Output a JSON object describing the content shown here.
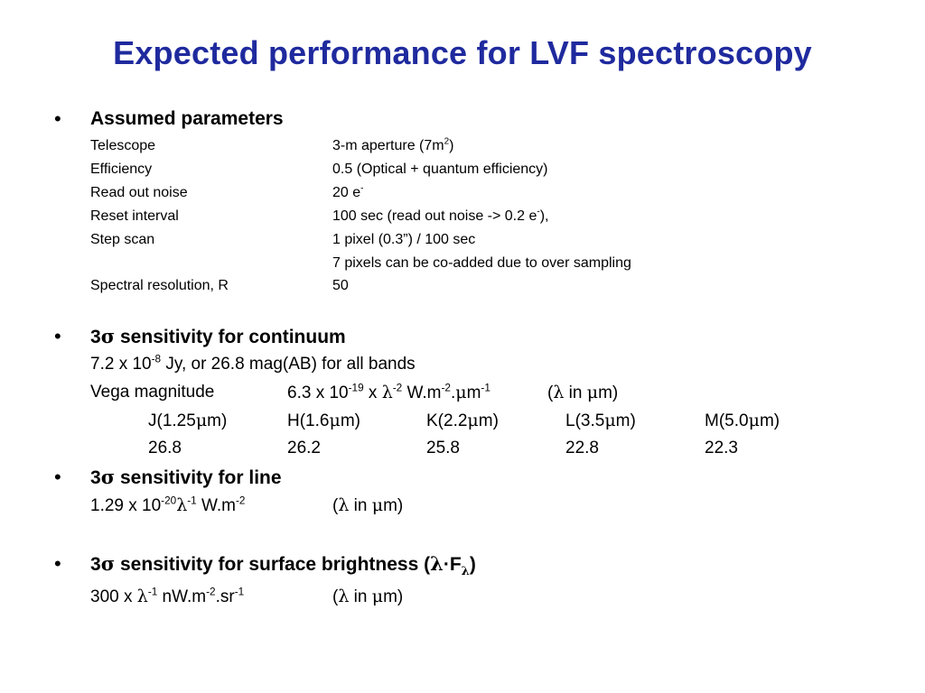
{
  "title": "Expected performance for LVF spectroscopy",
  "bullet_glyph": "•",
  "section1": {
    "heading": "Assumed parameters",
    "rows": [
      {
        "label": "Telescope",
        "value_pre": "3-m aperture (7m",
        "value_sup": "2",
        "value_post": ")"
      },
      {
        "label": "Efficiency",
        "value_pre": "0.5 (Optical + quantum efficiency)",
        "value_sup": "",
        "value_post": ""
      },
      {
        "label": "Read out noise",
        "value_pre": "20 e",
        "value_sup": "-",
        "value_post": ""
      },
      {
        "label": "Reset interval",
        "value_pre": "100 sec (read out noise -> 0.2 e",
        "value_sup": "-",
        "value_post": "),"
      },
      {
        "label": "Step scan",
        "value_pre": "1 pixel (0.3”) / 100 sec",
        "value_sup": "",
        "value_post": ""
      },
      {
        "label": "",
        "value_pre": "7 pixels can be co-added due to over sampling",
        "value_sup": "",
        "value_post": ""
      },
      {
        "label": "Spectral resolution, R",
        "value_pre": "50",
        "value_sup": "",
        "value_post": ""
      }
    ]
  },
  "section2": {
    "heading_num": "3",
    "heading_sym": "σ",
    "heading_rest": " sensitivity for continuum",
    "line1": {
      "a": "7.2 x 10",
      "sup": "-8",
      "b": " Jy, or 26.8 mag(AB)  for all bands"
    },
    "vega": {
      "label": "Vega magnitude",
      "v_a": "6.3 x 10",
      "v_sup1": "-19",
      "v_b": " x ",
      "v_lam": "λ",
      "v_sup2": "-2",
      "v_c": " W.m",
      "v_sup3": "-2",
      "v_d": ".",
      "v_mu": "μ",
      "v_e": "m",
      "v_sup4": "-1",
      "note_a": "(",
      "note_lam": "λ",
      "note_b": " in ",
      "note_mu": "μ",
      "note_c": "m)"
    },
    "bands": [
      {
        "pre": "J(1.25",
        "mu": "μ",
        "post": "m)",
        "value": "26.8"
      },
      {
        "pre": "H(1.6",
        "mu": "μ",
        "post": "m)",
        "value": "26.2"
      },
      {
        "pre": "K(2.2",
        "mu": "μ",
        "post": "m)",
        "value": "25.8"
      },
      {
        "pre": "L(3.5",
        "mu": "μ",
        "post": "m)",
        "value": "22.8"
      },
      {
        "pre": "M(5.0",
        "mu": "μ",
        "post": "m)",
        "value": "22.3"
      }
    ]
  },
  "section3": {
    "heading_num": "3",
    "heading_sym": "σ",
    "heading_rest": " sensitivity for line",
    "line": {
      "a": "1.29 x 10",
      "sup1": "-20",
      "lam": "λ",
      "sup2": "-1",
      "b": " W.m",
      "sup3": "-2"
    },
    "note": {
      "a": "(",
      "lam": "λ",
      "b": " in ",
      "mu": "μ",
      "c": "m)"
    }
  },
  "section4": {
    "heading_num": "3",
    "heading_sym": "σ",
    "heading_rest": " sensitivity for surface brightness (",
    "heading_lam": "λ",
    "heading_dot": "·",
    "heading_F": "F",
    "heading_sub": "λ",
    "heading_close": ")",
    "line": {
      "a": "300 x ",
      "lam": "λ",
      "sup1": "-1",
      "b": " nW.m",
      "sup2": "-2",
      "c": ".sr",
      "sup3": "-1"
    },
    "note": {
      "a": "(",
      "lam": "λ",
      "b": " in ",
      "mu": "μ",
      "c": "m)"
    }
  }
}
